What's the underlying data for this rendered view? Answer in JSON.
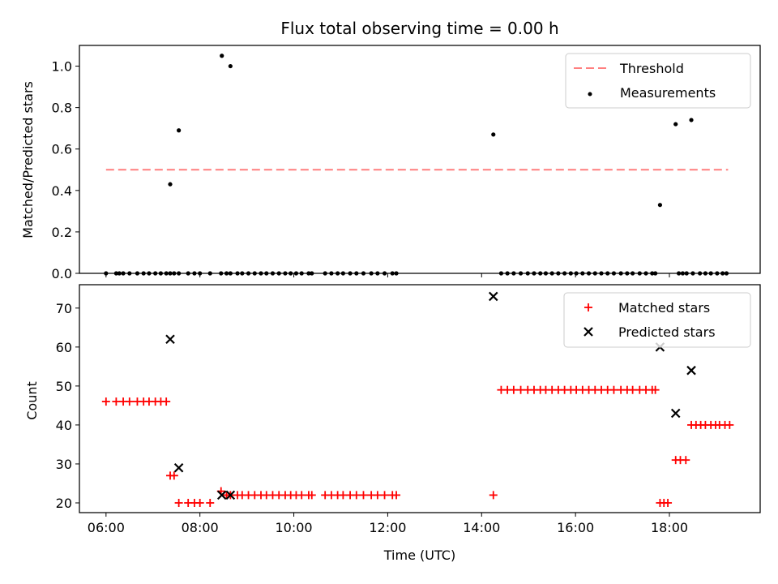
{
  "chart_data": [
    {
      "type": "scatter",
      "title": "Flux total observing time = 0.00 h",
      "xlabel": "",
      "ylabel": "Matched/Predicted stars",
      "xlim": [
        "05:26",
        "19:56"
      ],
      "ylim": [
        0,
        1.1
      ],
      "yticks": [
        0.0,
        0.2,
        0.4,
        0.6,
        0.8,
        1.0
      ],
      "ytick_labels": [
        "0.0",
        "0.2",
        "0.4",
        "0.6",
        "0.8",
        "1.0"
      ],
      "legend_position": "upper right",
      "threshold": {
        "name": "Threshold",
        "value": 0.5,
        "x_start": "06:00",
        "x_end": "19:15",
        "color": "#ff7f7f",
        "style": "dashed"
      },
      "series": [
        {
          "name": "Measurements",
          "color": "#000000",
          "marker": "dot",
          "x": [
            "06:00",
            "06:13",
            "06:17",
            "06:22",
            "06:30",
            "06:40",
            "06:48",
            "06:55",
            "07:03",
            "07:10",
            "07:17",
            "07:22",
            "07:27",
            "07:33",
            "07:45",
            "07:53",
            "08:00",
            "08:13",
            "08:27",
            "08:34",
            "08:39",
            "08:48",
            "08:54",
            "09:02",
            "09:10",
            "09:18",
            "09:25",
            "09:33",
            "09:41",
            "09:49",
            "09:56",
            "10:03",
            "10:10",
            "10:19",
            "10:23",
            "10:40",
            "10:48",
            "10:56",
            "11:03",
            "11:12",
            "11:20",
            "11:29",
            "11:39",
            "11:47",
            "11:56",
            "12:06",
            "12:11",
            "14:25",
            "14:33",
            "14:41",
            "14:50",
            "14:59",
            "15:07",
            "15:15",
            "15:22",
            "15:30",
            "15:38",
            "15:46",
            "15:54",
            "16:01",
            "16:09",
            "16:17",
            "16:25",
            "16:33",
            "16:41",
            "16:49",
            "16:58",
            "17:06",
            "17:13",
            "17:22",
            "17:30",
            "17:38",
            "17:42",
            "18:12",
            "18:17",
            "18:22",
            "18:30",
            "18:39",
            "18:46",
            "18:53",
            "19:01",
            "19:08",
            "19:13",
            "07:22",
            "07:33",
            "08:28",
            "08:39",
            "14:15",
            "17:48",
            "18:08",
            "18:28"
          ],
          "y": [
            0,
            0,
            0,
            0,
            0,
            0,
            0,
            0,
            0,
            0,
            0,
            0,
            0,
            0,
            0,
            0,
            0,
            0,
            0,
            0,
            0,
            0,
            0,
            0,
            0,
            0,
            0,
            0,
            0,
            0,
            0,
            0,
            0,
            0,
            0,
            0,
            0,
            0,
            0,
            0,
            0,
            0,
            0,
            0,
            0,
            0,
            0,
            0,
            0,
            0,
            0,
            0,
            0,
            0,
            0,
            0,
            0,
            0,
            0,
            0,
            0,
            0,
            0,
            0,
            0,
            0,
            0,
            0,
            0,
            0,
            0,
            0,
            0,
            0,
            0,
            0,
            0,
            0,
            0,
            0,
            0,
            0,
            0,
            0.43,
            0.69,
            1.05,
            1.0,
            0.67,
            0.33,
            0.72,
            0.74
          ]
        }
      ]
    },
    {
      "type": "scatter",
      "title": "",
      "xlabel": "Time (UTC)",
      "ylabel": "Count",
      "xlim": [
        "05:26",
        "19:56"
      ],
      "ylim": [
        17.5,
        76
      ],
      "xticks": [
        "06:00",
        "08:00",
        "10:00",
        "12:00",
        "14:00",
        "16:00",
        "18:00"
      ],
      "yticks": [
        20,
        30,
        40,
        50,
        60,
        70
      ],
      "ytick_labels": [
        "20",
        "30",
        "40",
        "50",
        "60",
        "70"
      ],
      "legend_position": "upper right",
      "series": [
        {
          "name": "Matched stars",
          "color": "#ff0000",
          "marker": "plus",
          "x": [
            "06:00",
            "06:13",
            "06:22",
            "06:30",
            "06:40",
            "06:48",
            "06:55",
            "07:03",
            "07:10",
            "07:17",
            "07:22",
            "07:27",
            "07:33",
            "07:45",
            "07:53",
            "08:00",
            "08:13",
            "08:27",
            "08:34",
            "08:39",
            "08:48",
            "08:54",
            "09:02",
            "09:10",
            "09:18",
            "09:25",
            "09:33",
            "09:41",
            "09:49",
            "09:56",
            "10:03",
            "10:10",
            "10:19",
            "10:23",
            "10:40",
            "10:48",
            "10:56",
            "11:03",
            "11:12",
            "11:20",
            "11:29",
            "11:39",
            "11:47",
            "11:56",
            "12:06",
            "12:11",
            "14:15",
            "14:25",
            "14:33",
            "14:41",
            "14:50",
            "14:59",
            "15:07",
            "15:15",
            "15:22",
            "15:30",
            "15:38",
            "15:46",
            "15:54",
            "16:01",
            "16:09",
            "16:17",
            "16:25",
            "16:33",
            "16:41",
            "16:49",
            "16:58",
            "17:06",
            "17:13",
            "17:22",
            "17:30",
            "17:38",
            "17:42",
            "17:48",
            "17:53",
            "17:58",
            "18:08",
            "18:14",
            "18:21",
            "18:28",
            "18:34",
            "18:40",
            "18:46",
            "18:53",
            "18:59",
            "19:04",
            "19:11",
            "19:17"
          ],
          "y": [
            46,
            46,
            46,
            46,
            46,
            46,
            46,
            46,
            46,
            46,
            27,
            27,
            20,
            20,
            20,
            20,
            20,
            23,
            22,
            22,
            22,
            22,
            22,
            22,
            22,
            22,
            22,
            22,
            22,
            22,
            22,
            22,
            22,
            22,
            22,
            22,
            22,
            22,
            22,
            22,
            22,
            22,
            22,
            22,
            22,
            22,
            22,
            49,
            49,
            49,
            49,
            49,
            49,
            49,
            49,
            49,
            49,
            49,
            49,
            49,
            49,
            49,
            49,
            49,
            49,
            49,
            49,
            49,
            49,
            49,
            49,
            49,
            49,
            20,
            20,
            20,
            31,
            31,
            31,
            40,
            40,
            40,
            40,
            40,
            40,
            40,
            40,
            40
          ]
        },
        {
          "name": "Predicted stars",
          "color": "#000000",
          "marker": "x",
          "x": [
            "07:22",
            "07:33",
            "08:28",
            "08:39",
            "14:15",
            "17:48",
            "18:08",
            "18:28"
          ],
          "y": [
            62,
            29,
            22,
            22,
            73,
            60,
            43,
            54
          ]
        }
      ]
    }
  ]
}
